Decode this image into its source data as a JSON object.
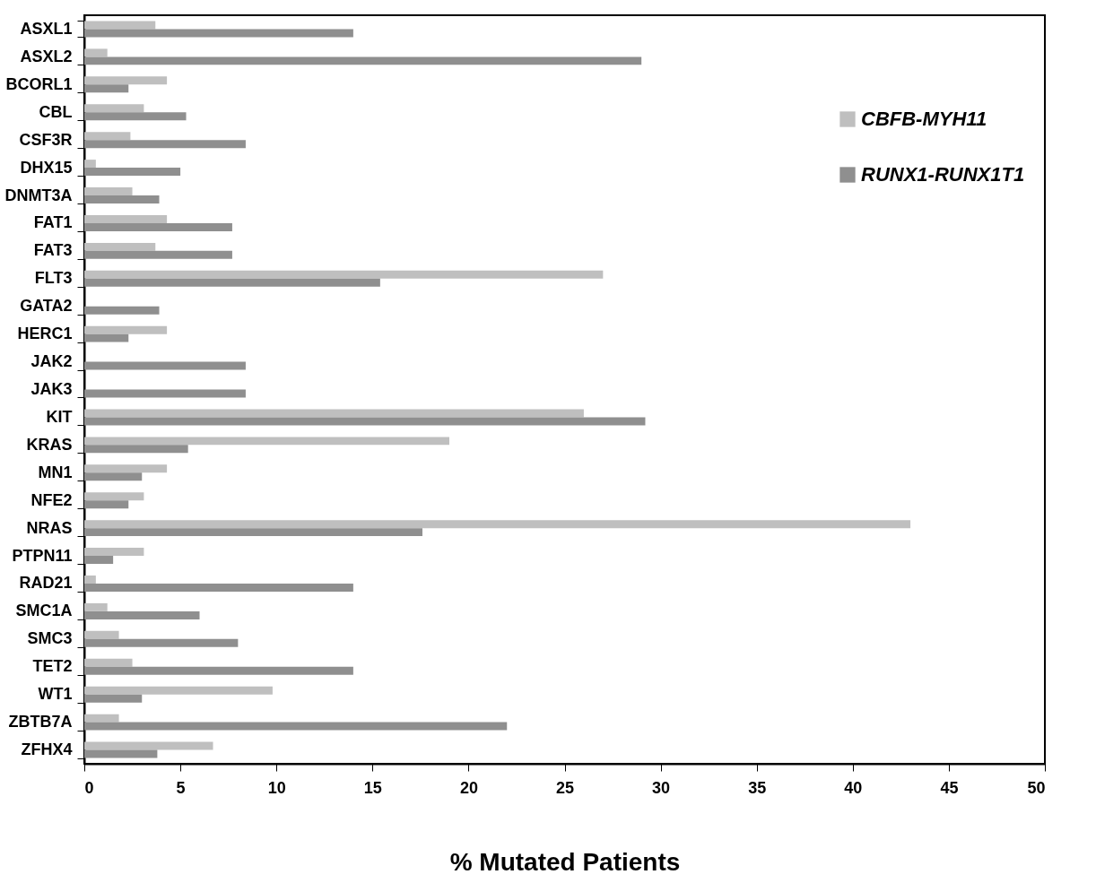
{
  "chart_data": {
    "type": "bar",
    "orientation": "horizontal",
    "xlabel": "% Mutated Patients",
    "categories": [
      "ASXL1",
      "ASXL2",
      "BCORL1",
      "CBL",
      "CSF3R",
      "DHX15",
      "DNMT3A",
      "FAT1",
      "FAT3",
      "FLT3",
      "GATA2",
      "HERC1",
      "JAK2",
      "JAK3",
      "KIT",
      "KRAS",
      "MN1",
      "NFE2",
      "NRAS",
      "PTPN11",
      "RAD21",
      "SMC1A",
      "SMC3",
      "TET2",
      "WT1",
      "ZBTB7A",
      "ZFHX4"
    ],
    "series": [
      {
        "name": "CBFB-MYH11",
        "color": "#bfbfbf",
        "values": [
          3.7,
          1.2,
          4.3,
          3.1,
          2.4,
          0.6,
          2.5,
          4.3,
          3.7,
          27.0,
          null,
          4.3,
          null,
          null,
          26.0,
          19.0,
          4.3,
          3.1,
          43.0,
          3.1,
          0.6,
          1.2,
          1.8,
          2.5,
          9.8,
          1.8,
          6.7
        ]
      },
      {
        "name": "RUNX1-RUNX1T1",
        "color": "#8f8f8f",
        "values": [
          14.0,
          29.0,
          2.3,
          5.3,
          8.4,
          5.0,
          3.9,
          7.7,
          7.7,
          15.4,
          3.9,
          2.3,
          8.4,
          8.4,
          29.2,
          5.4,
          3.0,
          2.3,
          17.6,
          1.5,
          14.0,
          6.0,
          8.0,
          14.0,
          3.0,
          22.0,
          3.8
        ]
      }
    ],
    "xlim": [
      0,
      50
    ],
    "xticks": [
      0,
      5,
      10,
      15,
      20,
      25,
      30,
      35,
      40,
      45,
      50
    ],
    "grid": false,
    "legend": "top right"
  }
}
